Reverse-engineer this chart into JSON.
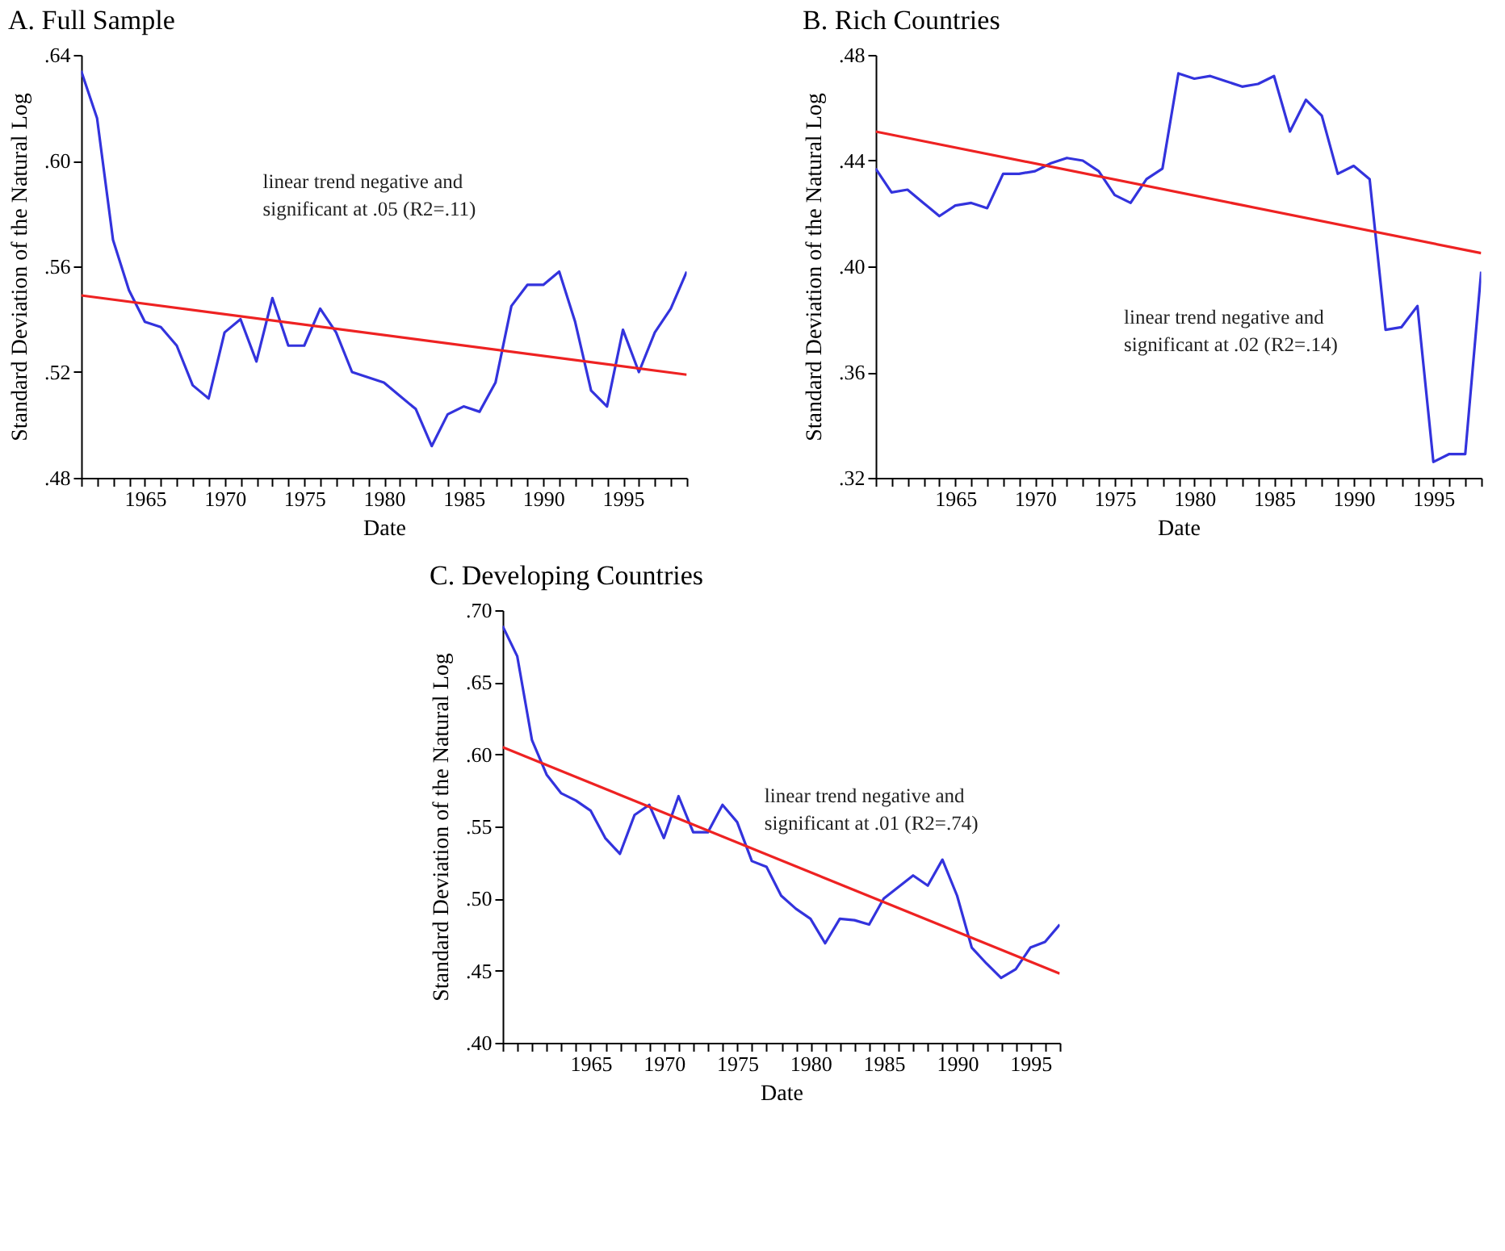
{
  "chart_data": [
    {
      "type": "line",
      "title": "A. Full Sample",
      "xlabel": "Date",
      "ylabel": "Standard Deviation of the Natural Log",
      "x": [
        1961,
        1962,
        1963,
        1964,
        1965,
        1966,
        1967,
        1968,
        1969,
        1970,
        1971,
        1972,
        1973,
        1974,
        1975,
        1976,
        1977,
        1978,
        1979,
        1980,
        1981,
        1982,
        1983,
        1984,
        1985,
        1986,
        1987,
        1988,
        1989,
        1990,
        1991,
        1992,
        1993,
        1994,
        1995,
        1996,
        1997,
        1998,
        1999
      ],
      "series": [
        {
          "color": "#3333dd",
          "values": [
            0.634,
            0.616,
            0.57,
            0.551,
            0.539,
            0.537,
            0.53,
            0.515,
            0.51,
            0.535,
            0.54,
            0.524,
            0.548,
            0.53,
            0.53,
            0.544,
            0.535,
            0.52,
            0.518,
            0.516,
            0.511,
            0.506,
            0.492,
            0.504,
            0.507,
            0.505,
            0.516,
            0.545,
            0.553,
            0.553,
            0.558,
            0.539,
            0.513,
            0.507,
            0.536,
            0.52,
            0.535,
            0.544,
            0.558
          ]
        },
        {
          "type": "line",
          "color": "#ee2222",
          "x": [
            1961,
            1999
          ],
          "values": [
            0.549,
            0.519
          ]
        }
      ],
      "xlim": [
        1961,
        1999
      ],
      "ylim": [
        0.48,
        0.64
      ],
      "xticks": [
        {
          "value": 1961,
          "label": null
        },
        {
          "value": 1962,
          "label": null
        },
        {
          "value": 1963,
          "label": null
        },
        {
          "value": 1964,
          "label": null
        },
        1965,
        {
          "value": 1966,
          "label": null
        },
        {
          "value": 1967,
          "label": null
        },
        {
          "value": 1968,
          "label": null
        },
        {
          "value": 1969,
          "label": null
        },
        1970,
        {
          "value": 1971,
          "label": null
        },
        {
          "value": 1972,
          "label": null
        },
        {
          "value": 1973,
          "label": null
        },
        {
          "value": 1974,
          "label": null
        },
        1975,
        {
          "value": 1976,
          "label": null
        },
        {
          "value": 1977,
          "label": null
        },
        {
          "value": 1978,
          "label": null
        },
        {
          "value": 1979,
          "label": null
        },
        1980,
        {
          "value": 1981,
          "label": null
        },
        {
          "value": 1982,
          "label": null
        },
        {
          "value": 1983,
          "label": null
        },
        {
          "value": 1984,
          "label": null
        },
        1985,
        {
          "value": 1986,
          "label": null
        },
        {
          "value": 1987,
          "label": null
        },
        {
          "value": 1988,
          "label": null
        },
        {
          "value": 1989,
          "label": null
        },
        1990,
        {
          "value": 1991,
          "label": null
        },
        {
          "value": 1992,
          "label": null
        },
        {
          "value": 1993,
          "label": null
        },
        {
          "value": 1994,
          "label": null
        },
        1995,
        {
          "value": 1996,
          "label": null
        },
        {
          "value": 1997,
          "label": null
        },
        {
          "value": 1998,
          "label": null
        },
        {
          "value": 1999,
          "label": null
        }
      ],
      "yticks": [
        {
          "value": 0.48,
          "label": ".48"
        },
        {
          "value": 0.52,
          "label": ".52"
        },
        {
          "value": 0.56,
          "label": ".56"
        },
        {
          "value": 0.6,
          "label": ".60"
        },
        {
          "value": 0.64,
          "label": ".64"
        }
      ],
      "annotations": [
        "linear trend negative and",
        "significant at .05 (R2=.11)"
      ]
    },
    {
      "type": "line",
      "title": "B. Rich Countries",
      "xlabel": "Date",
      "ylabel": "Standard Deviation of the Natural Log",
      "x": [
        1960,
        1961,
        1962,
        1963,
        1964,
        1965,
        1966,
        1967,
        1968,
        1969,
        1970,
        1971,
        1972,
        1973,
        1974,
        1975,
        1976,
        1977,
        1978,
        1979,
        1980,
        1981,
        1982,
        1983,
        1984,
        1985,
        1986,
        1987,
        1988,
        1989,
        1990,
        1991,
        1992,
        1993,
        1994,
        1995,
        1996,
        1997,
        1998
      ],
      "series": [
        {
          "color": "#3333dd",
          "values": [
            0.437,
            0.428,
            0.429,
            0.424,
            0.419,
            0.423,
            0.424,
            0.422,
            0.435,
            0.435,
            0.436,
            0.439,
            0.441,
            0.44,
            0.436,
            0.427,
            0.424,
            0.433,
            0.437,
            0.473,
            0.471,
            0.472,
            0.47,
            0.468,
            0.469,
            0.472,
            0.451,
            0.463,
            0.457,
            0.435,
            0.438,
            0.433,
            0.376,
            0.377,
            0.385,
            0.326,
            0.329,
            0.329,
            0.398
          ]
        },
        {
          "type": "line",
          "color": "#ee2222",
          "x": [
            1960,
            1998
          ],
          "values": [
            0.451,
            0.405
          ]
        }
      ],
      "xlim": [
        1960,
        1998
      ],
      "ylim": [
        0.32,
        0.48
      ],
      "xticks": [
        {
          "value": 1960,
          "label": null
        },
        {
          "value": 1961,
          "label": null
        },
        {
          "value": 1962,
          "label": null
        },
        {
          "value": 1963,
          "label": null
        },
        {
          "value": 1964,
          "label": null
        },
        1965,
        {
          "value": 1966,
          "label": null
        },
        {
          "value": 1967,
          "label": null
        },
        {
          "value": 1968,
          "label": null
        },
        {
          "value": 1969,
          "label": null
        },
        1970,
        {
          "value": 1971,
          "label": null
        },
        {
          "value": 1972,
          "label": null
        },
        {
          "value": 1973,
          "label": null
        },
        {
          "value": 1974,
          "label": null
        },
        1975,
        {
          "value": 1976,
          "label": null
        },
        {
          "value": 1977,
          "label": null
        },
        {
          "value": 1978,
          "label": null
        },
        {
          "value": 1979,
          "label": null
        },
        1980,
        {
          "value": 1981,
          "label": null
        },
        {
          "value": 1982,
          "label": null
        },
        {
          "value": 1983,
          "label": null
        },
        {
          "value": 1984,
          "label": null
        },
        1985,
        {
          "value": 1986,
          "label": null
        },
        {
          "value": 1987,
          "label": null
        },
        {
          "value": 1988,
          "label": null
        },
        {
          "value": 1989,
          "label": null
        },
        1990,
        {
          "value": 1991,
          "label": null
        },
        {
          "value": 1992,
          "label": null
        },
        {
          "value": 1993,
          "label": null
        },
        {
          "value": 1994,
          "label": null
        },
        1995,
        {
          "value": 1996,
          "label": null
        },
        {
          "value": 1997,
          "label": null
        },
        {
          "value": 1998,
          "label": null
        }
      ],
      "yticks": [
        {
          "value": 0.32,
          "label": ".32"
        },
        {
          "value": 0.36,
          "label": ".36"
        },
        {
          "value": 0.4,
          "label": ".40"
        },
        {
          "value": 0.44,
          "label": ".44"
        },
        {
          "value": 0.48,
          "label": ".48"
        }
      ],
      "annotations": [
        "linear trend negative and",
        "significant at .02 (R2=.14)"
      ]
    },
    {
      "type": "line",
      "title": "C. Developing Countries",
      "xlabel": "Date",
      "ylabel": "Standard Deviation of the Natural Log",
      "x": [
        1959,
        1960,
        1961,
        1962,
        1963,
        1964,
        1965,
        1966,
        1967,
        1968,
        1969,
        1970,
        1971,
        1972,
        1973,
        1974,
        1975,
        1976,
        1977,
        1978,
        1979,
        1980,
        1981,
        1982,
        1983,
        1984,
        1985,
        1986,
        1987,
        1988,
        1989,
        1990,
        1991,
        1992,
        1993,
        1994,
        1995,
        1996,
        1997
      ],
      "series": [
        {
          "color": "#3333dd",
          "values": [
            0.689,
            0.668,
            0.61,
            0.586,
            0.573,
            0.568,
            0.561,
            0.542,
            0.531,
            0.558,
            0.565,
            0.542,
            0.571,
            0.546,
            0.546,
            0.565,
            0.553,
            0.526,
            0.522,
            0.502,
            0.493,
            0.486,
            0.469,
            0.486,
            0.485,
            0.482,
            0.5,
            0.508,
            0.516,
            0.509,
            0.527,
            0.502,
            0.466,
            0.455,
            0.445,
            0.451,
            0.466,
            0.47,
            0.482
          ]
        },
        {
          "type": "line",
          "color": "#ee2222",
          "x": [
            1959,
            1997
          ],
          "values": [
            0.605,
            0.448
          ]
        }
      ],
      "xlim": [
        1959,
        1997
      ],
      "ylim": [
        0.4,
        0.7
      ],
      "xticks": [
        {
          "value": 1959,
          "label": null
        },
        {
          "value": 1960,
          "label": null
        },
        {
          "value": 1961,
          "label": null
        },
        {
          "value": 1962,
          "label": null
        },
        {
          "value": 1963,
          "label": null
        },
        {
          "value": 1964,
          "label": null
        },
        1965,
        {
          "value": 1966,
          "label": null
        },
        {
          "value": 1967,
          "label": null
        },
        {
          "value": 1968,
          "label": null
        },
        {
          "value": 1969,
          "label": null
        },
        1970,
        {
          "value": 1971,
          "label": null
        },
        {
          "value": 1972,
          "label": null
        },
        {
          "value": 1973,
          "label": null
        },
        {
          "value": 1974,
          "label": null
        },
        1975,
        {
          "value": 1976,
          "label": null
        },
        {
          "value": 1977,
          "label": null
        },
        {
          "value": 1978,
          "label": null
        },
        {
          "value": 1979,
          "label": null
        },
        1980,
        {
          "value": 1981,
          "label": null
        },
        {
          "value": 1982,
          "label": null
        },
        {
          "value": 1983,
          "label": null
        },
        {
          "value": 1984,
          "label": null
        },
        1985,
        {
          "value": 1986,
          "label": null
        },
        {
          "value": 1987,
          "label": null
        },
        {
          "value": 1988,
          "label": null
        },
        {
          "value": 1989,
          "label": null
        },
        1990,
        {
          "value": 1991,
          "label": null
        },
        {
          "value": 1992,
          "label": null
        },
        {
          "value": 1993,
          "label": null
        },
        {
          "value": 1994,
          "label": null
        },
        1995,
        {
          "value": 1996,
          "label": null
        },
        {
          "value": 1997,
          "label": null
        }
      ],
      "yticks": [
        {
          "value": 0.4,
          "label": ".40"
        },
        {
          "value": 0.45,
          "label": ".45"
        },
        {
          "value": 0.5,
          "label": ".50"
        },
        {
          "value": 0.55,
          "label": ".55"
        },
        {
          "value": 0.6,
          "label": ".60"
        },
        {
          "value": 0.65,
          "label": ".65"
        },
        {
          "value": 0.7,
          "label": ".70"
        }
      ],
      "annotations": [
        "linear trend negative and",
        "significant at .01 (R2=.74)"
      ]
    }
  ]
}
